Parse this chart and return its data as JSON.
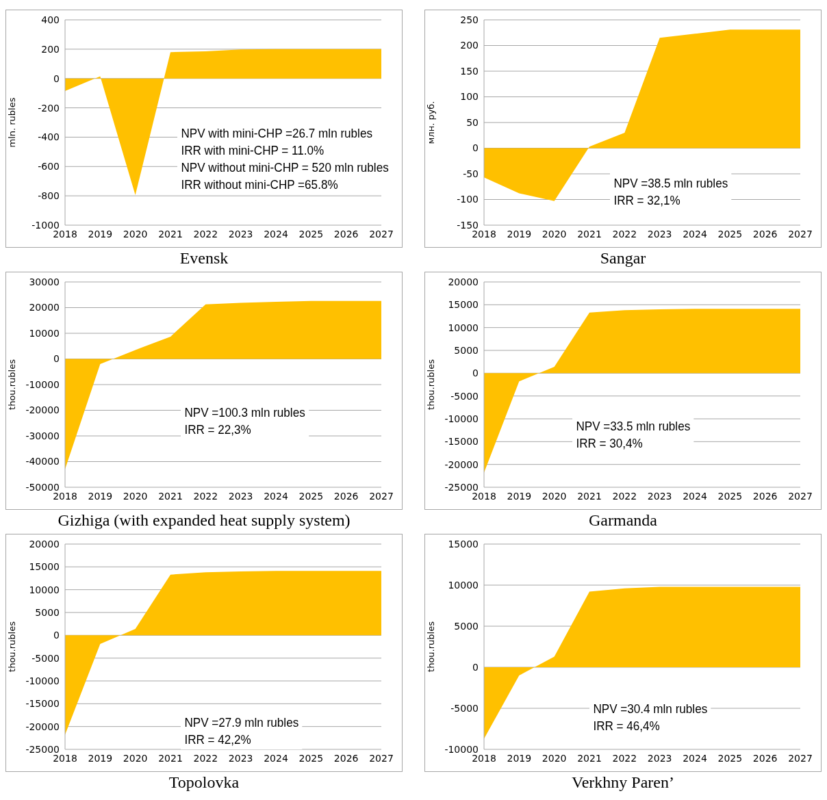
{
  "chart_data": [
    {
      "type": "area",
      "title": "Evensk",
      "ylabel": "mln. rubles",
      "categories": [
        "2018",
        "2019",
        "2020",
        "2021",
        "2022",
        "2023",
        "2024",
        "2025",
        "2026",
        "2027"
      ],
      "values": [
        -85,
        15,
        -795,
        180,
        185,
        198,
        200,
        200,
        200,
        200
      ],
      "color": "#ffc000",
      "ylim": [
        -1000,
        400
      ],
      "yticks": [
        -1000,
        -800,
        -600,
        -400,
        -200,
        0,
        200,
        400
      ],
      "grid": "y",
      "annotations": [
        "NPV with mini-CHP =26.7 mln rubles",
        "IRR with mini-CHP = 11.0%",
        "NPV without mini-CHP = 520 mln rubles",
        "IRR without mini-CHP =65.8%"
      ]
    },
    {
      "type": "area",
      "title": "Sangar",
      "ylabel": "млн. руб.",
      "categories": [
        "2018",
        "2019",
        "2020",
        "2021",
        "2022",
        "2023",
        "2024",
        "2025",
        "2026",
        "2027"
      ],
      "values": [
        -57,
        -88,
        -103,
        3,
        30,
        215,
        223,
        231,
        231,
        231
      ],
      "color": "#ffc000",
      "ylim": [
        -150,
        250
      ],
      "yticks": [
        -150,
        -100,
        -50,
        0,
        50,
        100,
        150,
        200,
        250
      ],
      "grid": "y",
      "annotations": [
        "NPV =38.5 mln rubles",
        "IRR = 32,1%"
      ]
    },
    {
      "type": "area",
      "title": "Gizhiga (with expanded heat supply system)",
      "ylabel": "thou.rubles",
      "categories": [
        "2018",
        "2019",
        "2020",
        "2021",
        "2022",
        "2023",
        "2024",
        "2025",
        "2026",
        "2027"
      ],
      "values": [
        -43000,
        -2000,
        3500,
        8700,
        21300,
        21900,
        22300,
        22600,
        22600,
        22600
      ],
      "color": "#ffc000",
      "ylim": [
        -50000,
        30000
      ],
      "yticks": [
        -50000,
        -40000,
        -30000,
        -20000,
        -10000,
        0,
        10000,
        20000,
        30000
      ],
      "grid": "y",
      "annotations": [
        "NPV =100.3 mln rubles",
        "IRR = 22,3%"
      ]
    },
    {
      "type": "area",
      "title": "Garmanda",
      "ylabel": "thou.rubles",
      "categories": [
        "2018",
        "2019",
        "2020",
        "2021",
        "2022",
        "2023",
        "2024",
        "2025",
        "2026",
        "2027"
      ],
      "values": [
        -21800,
        -1800,
        1400,
        13300,
        13800,
        14000,
        14100,
        14100,
        14100,
        14100
      ],
      "color": "#ffc000",
      "ylim": [
        -25000,
        20000
      ],
      "yticks": [
        -25000,
        -20000,
        -15000,
        -10000,
        -5000,
        0,
        5000,
        10000,
        15000,
        20000
      ],
      "grid": "y",
      "annotations": [
        "NPV =33.5 mln rubles",
        "IRR = 30,4%"
      ]
    },
    {
      "type": "area",
      "title": "Topolovka",
      "ylabel": "thou.rubles",
      "categories": [
        "2018",
        "2019",
        "2020",
        "2021",
        "2022",
        "2023",
        "2024",
        "2025",
        "2026",
        "2027"
      ],
      "values": [
        -21800,
        -1900,
        1400,
        13300,
        13800,
        14000,
        14100,
        14100,
        14100,
        14100
      ],
      "color": "#ffc000",
      "ylim": [
        -25000,
        20000
      ],
      "yticks": [
        -25000,
        -20000,
        -15000,
        -10000,
        -5000,
        0,
        5000,
        10000,
        15000,
        20000
      ],
      "grid": "y",
      "annotations": [
        "NPV =27.9 mln rubles",
        "IRR = 42,2%"
      ]
    },
    {
      "type": "area",
      "title": "Verkhny Paren’",
      "ylabel": "thou.rubles",
      "categories": [
        "2018",
        "2019",
        "2020",
        "2021",
        "2022",
        "2023",
        "2024",
        "2025",
        "2026",
        "2027"
      ],
      "values": [
        -8700,
        -1000,
        1300,
        9200,
        9600,
        9800,
        9800,
        9800,
        9800,
        9800
      ],
      "color": "#ffc000",
      "ylim": [
        -10000,
        15000
      ],
      "yticks": [
        -10000,
        -5000,
        0,
        5000,
        10000,
        15000
      ],
      "grid": "y",
      "annotations": [
        "NPV =30.4 mln rubles",
        "IRR = 46,4%"
      ]
    }
  ]
}
